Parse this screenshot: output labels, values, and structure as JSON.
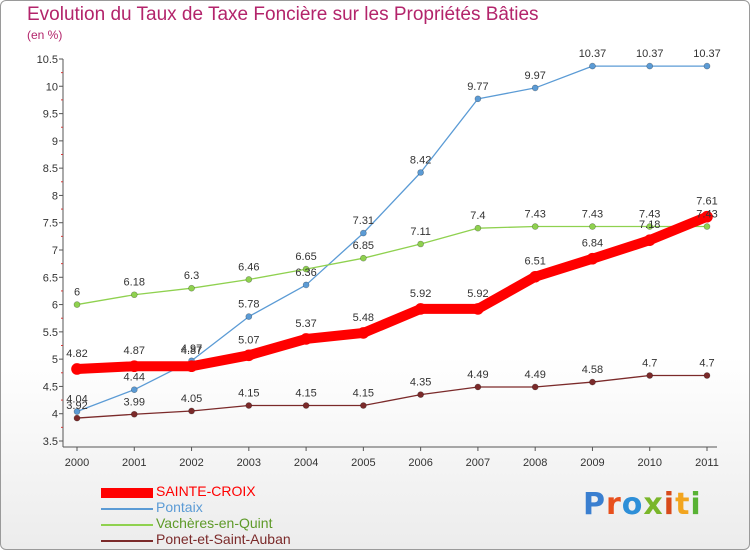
{
  "header": {
    "title": "Evolution du Taux de Taxe Foncière sur les Propriétés Bâties",
    "subtitle": "(en %)"
  },
  "logo": {
    "text": "Proxiti",
    "letter_colors": [
      "#3a7fd0",
      "#e8501d",
      "#2e8fd8",
      "#7ab62a",
      "#d84a1b",
      "#f2a51f",
      "#58b234"
    ]
  },
  "chart_data": {
    "type": "line",
    "title": "Evolution du Taux de Taxe Foncière sur les Propriétés Bâties",
    "ylabel": "(en %)",
    "xlabel": "",
    "x": [
      "2000",
      "2001",
      "2002",
      "2003",
      "2004",
      "2005",
      "2006",
      "2007",
      "2008",
      "2009",
      "2010",
      "2011"
    ],
    "ylim": [
      3.5,
      10.5
    ],
    "yticks": [
      "3.5",
      "4",
      "4.5",
      "5",
      "5.5",
      "6",
      "6.5",
      "7",
      "7.5",
      "8",
      "8.5",
      "9",
      "9.5",
      "10",
      "10.5"
    ],
    "grid": false,
    "legend_position": "bottom-left",
    "series": [
      {
        "name": "SAINTE-CROIX",
        "color": "#ff0000",
        "values": [
          4.82,
          4.87,
          4.87,
          5.07,
          5.37,
          5.48,
          5.92,
          5.92,
          6.51,
          6.84,
          7.18,
          7.61
        ],
        "labels": [
          "4.82",
          "4.87",
          "4.87",
          "5.07",
          "5.37",
          "5.48",
          "5.92",
          "5.92",
          "6.51",
          "6.84",
          "7.18",
          "7.61"
        ]
      },
      {
        "name": "Pontaix",
        "color": "#5b9bd5",
        "values": [
          4.04,
          4.44,
          4.97,
          5.78,
          6.36,
          7.31,
          8.42,
          9.77,
          9.97,
          10.37,
          10.37,
          10.37
        ],
        "labels": [
          "4.04",
          "4.44",
          "4.97",
          "5.78",
          "6.36",
          "7.31",
          "8.42",
          "9.77",
          "9.97",
          "10.37",
          "10.37",
          "10.37"
        ]
      },
      {
        "name": "Vachères-en-Quint",
        "color": "#8fd14f",
        "values": [
          6.0,
          6.18,
          6.3,
          6.46,
          6.65,
          6.85,
          7.11,
          7.4,
          7.43,
          7.43,
          7.43,
          7.43
        ],
        "labels": [
          "6",
          "6.18",
          "6.3",
          "6.46",
          "6.65",
          "6.85",
          "7.11",
          "7.4",
          "7.43",
          "7.43",
          "7.43",
          "7.43"
        ]
      },
      {
        "name": "Ponet-et-Saint-Auban",
        "color": "#7b2a2a",
        "values": [
          3.92,
          3.99,
          4.05,
          4.15,
          4.15,
          4.15,
          4.35,
          4.49,
          4.49,
          4.58,
          4.7,
          4.7
        ],
        "labels": [
          "3.92",
          "3.99",
          "4.05",
          "4.15",
          "4.15",
          "4.15",
          "4.35",
          "4.49",
          "4.49",
          "4.58",
          "4.7",
          "4.7"
        ]
      }
    ]
  }
}
